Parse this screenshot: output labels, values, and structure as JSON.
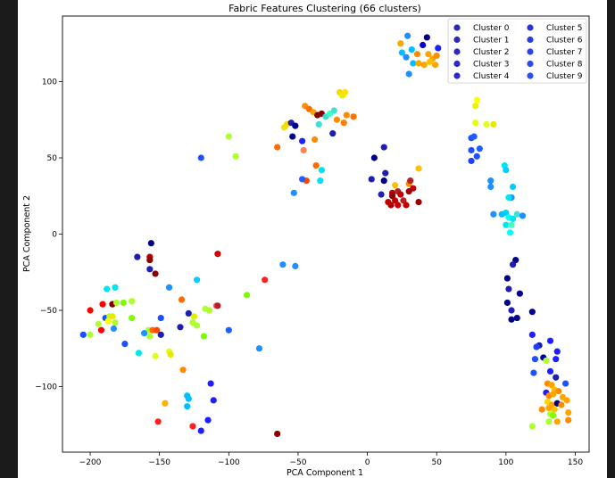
{
  "chart_data": {
    "type": "scatter",
    "title": "Fabric Features Clustering (66 clusters)",
    "xlabel": "PCA Component 1",
    "ylabel": "PCA Component 2",
    "xlim": [
      -220,
      160
    ],
    "ylim": [
      -143,
      143
    ],
    "xticks": [
      -200,
      -150,
      -100,
      -50,
      0,
      50,
      100,
      150
    ],
    "yticks": [
      -100,
      -50,
      0,
      50,
      100
    ],
    "grid": false,
    "legend_position": "top-right",
    "legend_entries": [
      {
        "label": "Cluster 0",
        "color": "#2b2bb0"
      },
      {
        "label": "Cluster 1",
        "color": "#2b2bb8"
      },
      {
        "label": "Cluster 2",
        "color": "#2a2ac0"
      },
      {
        "label": "Cluster 3",
        "color": "#2a2ac8"
      },
      {
        "label": "Cluster 4",
        "color": "#2a2ad0"
      },
      {
        "label": "Cluster 5",
        "color": "#2a35d8"
      },
      {
        "label": "Cluster 6",
        "color": "#2a3ee0"
      },
      {
        "label": "Cluster 7",
        "color": "#2a44e6"
      },
      {
        "label": "Cluster 8",
        "color": "#2a4aec"
      },
      {
        "label": "Cluster 9",
        "color": "#2a50f0"
      }
    ],
    "points": [
      {
        "x": 24,
        "y": 125,
        "c": "#ffa500"
      },
      {
        "x": 29,
        "y": 130,
        "c": "#1e90ff"
      },
      {
        "x": 32,
        "y": 121,
        "c": "#00bfff"
      },
      {
        "x": 36,
        "y": 118,
        "c": "#ff8c00"
      },
      {
        "x": 40,
        "y": 124,
        "c": "#0000cd"
      },
      {
        "x": 43,
        "y": 129,
        "c": "#00008b"
      },
      {
        "x": 47,
        "y": 115,
        "c": "#ffa500"
      },
      {
        "x": 51,
        "y": 122,
        "c": "#1e1eff"
      },
      {
        "x": 28,
        "y": 116,
        "c": "#1e90ff"
      },
      {
        "x": 33,
        "y": 112,
        "c": "#00bfff"
      },
      {
        "x": 37,
        "y": 112,
        "c": "#ffa500"
      },
      {
        "x": 41,
        "y": 111,
        "c": "#ffa500"
      },
      {
        "x": 45,
        "y": 113,
        "c": "#ffc000"
      },
      {
        "x": 49,
        "y": 111,
        "c": "#ffa500"
      },
      {
        "x": 50,
        "y": 117,
        "c": "#ff8c00"
      },
      {
        "x": 44,
        "y": 118,
        "c": "#ffa500"
      },
      {
        "x": 30,
        "y": 105,
        "c": "#1e90ff"
      },
      {
        "x": 25,
        "y": 119,
        "c": "#00bfff"
      },
      {
        "x": -20,
        "y": 93,
        "c": "#ffd700"
      },
      {
        "x": -18,
        "y": 91,
        "c": "#e0f000"
      },
      {
        "x": -16,
        "y": 93,
        "c": "#ffe000"
      },
      {
        "x": -60,
        "y": 70,
        "c": "#e8e800"
      },
      {
        "x": -58,
        "y": 72,
        "c": "#ffd700"
      },
      {
        "x": -55,
        "y": 73,
        "c": "#1e1eb0"
      },
      {
        "x": -52,
        "y": 71,
        "c": "#00008b"
      },
      {
        "x": -54,
        "y": 64,
        "c": "#00008b"
      },
      {
        "x": -47,
        "y": 61,
        "c": "#1e1eff"
      },
      {
        "x": -45,
        "y": 84,
        "c": "#ff8c00"
      },
      {
        "x": -42,
        "y": 82,
        "c": "#ff6a00"
      },
      {
        "x": -39,
        "y": 80,
        "c": "#ffa500"
      },
      {
        "x": -36,
        "y": 78,
        "c": "#800000"
      },
      {
        "x": -33,
        "y": 79,
        "c": "#8b0000"
      },
      {
        "x": -30,
        "y": 77,
        "c": "#40e0d0"
      },
      {
        "x": -27,
        "y": 79,
        "c": "#40ffc0"
      },
      {
        "x": -24,
        "y": 81,
        "c": "#40e0d0"
      },
      {
        "x": -22,
        "y": 75,
        "c": "#ff8c00"
      },
      {
        "x": -17,
        "y": 73,
        "c": "#ff7f00"
      },
      {
        "x": -15,
        "y": 78,
        "c": "#ff8c00"
      },
      {
        "x": -10,
        "y": 77,
        "c": "#ff7000"
      },
      {
        "x": -35,
        "y": 72,
        "c": "#40e0d0"
      },
      {
        "x": -38,
        "y": 62,
        "c": "#ff8c00"
      },
      {
        "x": -25,
        "y": 66,
        "c": "#1e1eb0"
      },
      {
        "x": -46,
        "y": 55,
        "c": "#ff7f50"
      },
      {
        "x": -65,
        "y": 57,
        "c": "#ff6a00"
      },
      {
        "x": -100,
        "y": 64,
        "c": "#adff2f"
      },
      {
        "x": -95,
        "y": 51,
        "c": "#adff2f"
      },
      {
        "x": -120,
        "y": 50,
        "c": "#1e50ff"
      },
      {
        "x": -37,
        "y": 45,
        "c": "#ff6a00"
      },
      {
        "x": -33,
        "y": 42,
        "c": "#00e5ee"
      },
      {
        "x": -34,
        "y": 35,
        "c": "#00e0ff"
      },
      {
        "x": -44,
        "y": 35,
        "c": "#ff4500"
      },
      {
        "x": -47,
        "y": 36,
        "c": "#1e60ff"
      },
      {
        "x": -53,
        "y": 27,
        "c": "#1e90ff"
      },
      {
        "x": 12,
        "y": 57,
        "c": "#1e1eb0"
      },
      {
        "x": 5,
        "y": 50,
        "c": "#00008b"
      },
      {
        "x": 13,
        "y": 40,
        "c": "#1e1eb0"
      },
      {
        "x": 3,
        "y": 36,
        "c": "#1e1eb0"
      },
      {
        "x": 12,
        "y": 35,
        "c": "#00008b"
      },
      {
        "x": 20,
        "y": 32,
        "c": "#ffc000"
      },
      {
        "x": 30,
        "y": 33,
        "c": "#ff8c00"
      },
      {
        "x": 37,
        "y": 43,
        "c": "#ffc000"
      },
      {
        "x": 10,
        "y": 26,
        "c": "#1e1eb0"
      },
      {
        "x": 18,
        "y": 27,
        "c": "#c00000"
      },
      {
        "x": 22,
        "y": 28,
        "c": "#b22222"
      },
      {
        "x": 30,
        "y": 28,
        "c": "#a00000"
      },
      {
        "x": 33,
        "y": 30,
        "c": "#c00000"
      },
      {
        "x": 31,
        "y": 35,
        "c": "#b22222"
      },
      {
        "x": 15,
        "y": 21,
        "c": "#c00000"
      },
      {
        "x": 17,
        "y": 19,
        "c": "#b00000"
      },
      {
        "x": 20,
        "y": 22,
        "c": "#c00000"
      },
      {
        "x": 22,
        "y": 19,
        "c": "#d00000"
      },
      {
        "x": 26,
        "y": 22,
        "c": "#b22222"
      },
      {
        "x": 28,
        "y": 19,
        "c": "#c00000"
      },
      {
        "x": 37,
        "y": 21,
        "c": "#a00000"
      },
      {
        "x": 18,
        "y": 25,
        "c": "#8b0000"
      },
      {
        "x": 24,
        "y": 26,
        "c": "#c00000"
      },
      {
        "x": 79,
        "y": 88,
        "c": "#ffff00"
      },
      {
        "x": 78,
        "y": 84,
        "c": "#f0f000"
      },
      {
        "x": 78,
        "y": 73,
        "c": "#e8ff00"
      },
      {
        "x": 86,
        "y": 72,
        "c": "#e0ff20"
      },
      {
        "x": 91,
        "y": 72,
        "c": "#e8e800"
      },
      {
        "x": 75,
        "y": 63,
        "c": "#1e50ff"
      },
      {
        "x": 77,
        "y": 64,
        "c": "#1e60ff"
      },
      {
        "x": 75,
        "y": 55,
        "c": "#1e50ff"
      },
      {
        "x": 81,
        "y": 56,
        "c": "#1e60ff"
      },
      {
        "x": 79,
        "y": 51,
        "c": "#1e50ff"
      },
      {
        "x": 75,
        "y": 48,
        "c": "#1e40ff"
      },
      {
        "x": 99,
        "y": 45,
        "c": "#00e5ee"
      },
      {
        "x": 100,
        "y": 42,
        "c": "#00d0ff"
      },
      {
        "x": 89,
        "y": 35,
        "c": "#1e90ff"
      },
      {
        "x": 89,
        "y": 31,
        "c": "#1e90ff"
      },
      {
        "x": 105,
        "y": 31,
        "c": "#00d0ff"
      },
      {
        "x": 104,
        "y": 24,
        "c": "#1e90ff"
      },
      {
        "x": 102,
        "y": 24,
        "c": "#00e5ee"
      },
      {
        "x": 91,
        "y": 13,
        "c": "#1e90ff"
      },
      {
        "x": 97,
        "y": 13,
        "c": "#00bfff"
      },
      {
        "x": 100,
        "y": 14,
        "c": "#00d0ff"
      },
      {
        "x": 102,
        "y": 11,
        "c": "#00ffff"
      },
      {
        "x": 105,
        "y": 10,
        "c": "#00e5ee"
      },
      {
        "x": 108,
        "y": 13,
        "c": "#40e0d0"
      },
      {
        "x": 112,
        "y": 12,
        "c": "#1e90ff"
      },
      {
        "x": 100,
        "y": 6,
        "c": "#00e5ee"
      },
      {
        "x": 104,
        "y": 6,
        "c": "#40ffc0"
      },
      {
        "x": 103,
        "y": 1,
        "c": "#00ffff"
      },
      {
        "x": 107,
        "y": -17,
        "c": "#00008b"
      },
      {
        "x": 105,
        "y": -20,
        "c": "#1e1eb0"
      },
      {
        "x": 101,
        "y": -29,
        "c": "#00008b"
      },
      {
        "x": 102,
        "y": -36,
        "c": "#1e1eb0"
      },
      {
        "x": 110,
        "y": -39,
        "c": "#00008b"
      },
      {
        "x": 101,
        "y": -45,
        "c": "#00008b"
      },
      {
        "x": 104,
        "y": -50,
        "c": "#1e1eb0"
      },
      {
        "x": 119,
        "y": -51,
        "c": "#00008b"
      },
      {
        "x": 108,
        "y": -55,
        "c": "#00008b"
      },
      {
        "x": 104,
        "y": -56,
        "c": "#00008b"
      },
      {
        "x": 119,
        "y": -66,
        "c": "#1e1eff"
      },
      {
        "x": 124,
        "y": -73,
        "c": "#1e1eb0"
      },
      {
        "x": 122,
        "y": -74,
        "c": "#1e40ff"
      },
      {
        "x": 132,
        "y": -70,
        "c": "#1e1eff"
      },
      {
        "x": 137,
        "y": -77,
        "c": "#1e1eff"
      },
      {
        "x": 121,
        "y": -82,
        "c": "#1e50ff"
      },
      {
        "x": 127,
        "y": -81,
        "c": "#00008b"
      },
      {
        "x": 129,
        "y": -83,
        "c": "#adff2f"
      },
      {
        "x": 136,
        "y": -82,
        "c": "#1e1eff"
      },
      {
        "x": 120,
        "y": -91,
        "c": "#1e50ff"
      },
      {
        "x": 132,
        "y": -90,
        "c": "#1e1eff"
      },
      {
        "x": 136,
        "y": -94,
        "c": "#1e1eb0"
      },
      {
        "x": 143,
        "y": -98,
        "c": "#1e50ff"
      },
      {
        "x": 130,
        "y": -98,
        "c": "#ff8c00"
      },
      {
        "x": 133,
        "y": -99,
        "c": "#ffa500"
      },
      {
        "x": 135,
        "y": -102,
        "c": "#ffc000"
      },
      {
        "x": 129,
        "y": -104,
        "c": "#1e1eff"
      },
      {
        "x": 131,
        "y": -106,
        "c": "#ff8c00"
      },
      {
        "x": 134,
        "y": -105,
        "c": "#ffa500"
      },
      {
        "x": 138,
        "y": -103,
        "c": "#ff8c00"
      },
      {
        "x": 141,
        "y": -107,
        "c": "#ffa500"
      },
      {
        "x": 144,
        "y": -109,
        "c": "#ffa500"
      },
      {
        "x": 130,
        "y": -110,
        "c": "#ffd700"
      },
      {
        "x": 133,
        "y": -112,
        "c": "#ffa500"
      },
      {
        "x": 137,
        "y": -111,
        "c": "#00008b"
      },
      {
        "x": 140,
        "y": -112,
        "c": "#ff8c00"
      },
      {
        "x": 126,
        "y": -115,
        "c": "#ff8c00"
      },
      {
        "x": 131,
        "y": -114,
        "c": "#ffa500"
      },
      {
        "x": 135,
        "y": -115,
        "c": "#ffc000"
      },
      {
        "x": 145,
        "y": -117,
        "c": "#ffa500"
      },
      {
        "x": 132,
        "y": -118,
        "c": "#adff2f"
      },
      {
        "x": 134,
        "y": -119,
        "c": "#7cfc00"
      },
      {
        "x": 131,
        "y": -123,
        "c": "#adff2f"
      },
      {
        "x": 137,
        "y": -123,
        "c": "#ffa500"
      },
      {
        "x": 145,
        "y": -122,
        "c": "#ff8c00"
      },
      {
        "x": 119,
        "y": -126,
        "c": "#adff2f"
      },
      {
        "x": -156,
        "y": -6,
        "c": "#00008b"
      },
      {
        "x": -166,
        "y": -15,
        "c": "#1e1eb0"
      },
      {
        "x": -157,
        "y": -15,
        "c": "#c00000"
      },
      {
        "x": -157,
        "y": -17,
        "c": "#8b0000"
      },
      {
        "x": -153,
        "y": -26,
        "c": "#8b0000"
      },
      {
        "x": -157,
        "y": -23,
        "c": "#1e1eb0"
      },
      {
        "x": -108,
        "y": -13,
        "c": "#d00000"
      },
      {
        "x": -61,
        "y": -20,
        "c": "#1e90ff"
      },
      {
        "x": -52,
        "y": -21,
        "c": "#1e90ff"
      },
      {
        "x": -74,
        "y": -30,
        "c": "#ff2020"
      },
      {
        "x": -143,
        "y": -35,
        "c": "#1e90ff"
      },
      {
        "x": -123,
        "y": -30,
        "c": "#00d0ff"
      },
      {
        "x": -87,
        "y": -40,
        "c": "#7cfc00"
      },
      {
        "x": -188,
        "y": -36,
        "c": "#00e5ee"
      },
      {
        "x": -182,
        "y": -35,
        "c": "#00e5ee"
      },
      {
        "x": -200,
        "y": -50,
        "c": "#ff0000"
      },
      {
        "x": -191,
        "y": -46,
        "c": "#ff0000"
      },
      {
        "x": -184,
        "y": -46,
        "c": "#800000"
      },
      {
        "x": -181,
        "y": -45,
        "c": "#adff2f"
      },
      {
        "x": -176,
        "y": -45,
        "c": "#7cfc00"
      },
      {
        "x": -170,
        "y": -44,
        "c": "#adff2f"
      },
      {
        "x": -189,
        "y": -55,
        "c": "#1e50ff"
      },
      {
        "x": -186,
        "y": -54,
        "c": "#adff2f"
      },
      {
        "x": -187,
        "y": -57,
        "c": "#ffff00"
      },
      {
        "x": -184,
        "y": -54,
        "c": "#e8e800"
      },
      {
        "x": -182,
        "y": -58,
        "c": "#adff2f"
      },
      {
        "x": -194,
        "y": -59,
        "c": "#adff2f"
      },
      {
        "x": -192,
        "y": -63,
        "c": "#ff0000"
      },
      {
        "x": -183,
        "y": -62,
        "c": "#1e90ff"
      },
      {
        "x": -170,
        "y": -55,
        "c": "#7cfc00"
      },
      {
        "x": -149,
        "y": -55,
        "c": "#1e50ff"
      },
      {
        "x": -134,
        "y": -43,
        "c": "#ff6a00"
      },
      {
        "x": -129,
        "y": -52,
        "c": "#1e1eb0"
      },
      {
        "x": -125,
        "y": -54,
        "c": "#e0f000"
      },
      {
        "x": -117,
        "y": -49,
        "c": "#adff2f"
      },
      {
        "x": -114,
        "y": -50,
        "c": "#adff2f"
      },
      {
        "x": -109,
        "y": -47,
        "c": "#ff6060"
      },
      {
        "x": -108,
        "y": -47,
        "c": "#b22222"
      },
      {
        "x": -126,
        "y": -58,
        "c": "#adff2f"
      },
      {
        "x": -123,
        "y": -60,
        "c": "#adff2f"
      },
      {
        "x": -135,
        "y": -61,
        "c": "#1e1eb0"
      },
      {
        "x": -100,
        "y": -63,
        "c": "#1e60ff"
      },
      {
        "x": -158,
        "y": -63,
        "c": "#adff2f"
      },
      {
        "x": -155,
        "y": -63,
        "c": "#ff6a00"
      },
      {
        "x": -152,
        "y": -63,
        "c": "#ff4500"
      },
      {
        "x": -161,
        "y": -65,
        "c": "#1e90ff"
      },
      {
        "x": -157,
        "y": -67,
        "c": "#adff2f"
      },
      {
        "x": -149,
        "y": -66,
        "c": "#1e1eb0"
      },
      {
        "x": -118,
        "y": -67,
        "c": "#7cfc00"
      },
      {
        "x": -205,
        "y": -66,
        "c": "#1e50ff"
      },
      {
        "x": -200,
        "y": -66,
        "c": "#adff2f"
      },
      {
        "x": -175,
        "y": -72,
        "c": "#1e50ff"
      },
      {
        "x": -165,
        "y": -78,
        "c": "#00e5ee"
      },
      {
        "x": -143,
        "y": -77,
        "c": "#e0ff20"
      },
      {
        "x": -142,
        "y": -79,
        "c": "#e8e800"
      },
      {
        "x": -153,
        "y": -80,
        "c": "#e0ff20"
      },
      {
        "x": -78,
        "y": -75,
        "c": "#1e90ff"
      },
      {
        "x": -133,
        "y": -89,
        "c": "#ff8c00"
      },
      {
        "x": -113,
        "y": -98,
        "c": "#1e1eff"
      },
      {
        "x": -130,
        "y": -106,
        "c": "#00bfff"
      },
      {
        "x": -129,
        "y": -108,
        "c": "#00bfff"
      },
      {
        "x": -111,
        "y": -109,
        "c": "#1e1eff"
      },
      {
        "x": -146,
        "y": -111,
        "c": "#ffb000"
      },
      {
        "x": -130,
        "y": -113,
        "c": "#00bfff"
      },
      {
        "x": -115,
        "y": -122,
        "c": "#1e1eff"
      },
      {
        "x": -151,
        "y": -123,
        "c": "#ff2020"
      },
      {
        "x": -126,
        "y": -126,
        "c": "#ff2020"
      },
      {
        "x": -120,
        "y": -129,
        "c": "#1e1eff"
      },
      {
        "x": -65,
        "y": -131,
        "c": "#8b0000"
      }
    ]
  }
}
